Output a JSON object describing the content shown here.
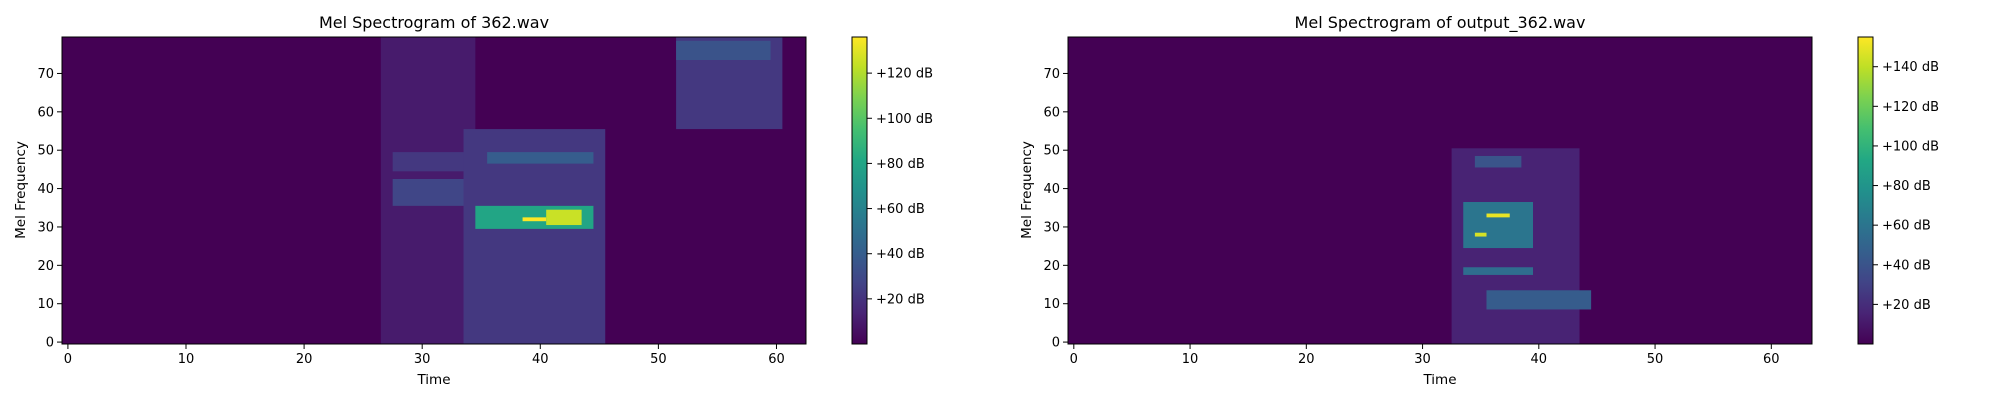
{
  "chart_data": [
    {
      "type": "heatmap",
      "title": "Mel Spectrogram of 362.wav",
      "xlabel": "Time",
      "ylabel": "Mel Frequency",
      "xlim": [
        -0.5,
        62.5
      ],
      "ylim": [
        -0.5,
        79.5
      ],
      "x_ticks": [
        0,
        10,
        20,
        30,
        40,
        50,
        60
      ],
      "y_ticks": [
        0,
        10,
        20,
        30,
        40,
        50,
        60,
        70
      ],
      "colormap": "viridis",
      "colorbar": {
        "label": "",
        "range_db": [
          0,
          136
        ],
        "ticks": [
          20,
          40,
          60,
          80,
          100,
          120
        ],
        "format": "+%d dB"
      },
      "grid": false,
      "regions": [
        {
          "t": [
            27,
            34
          ],
          "mel": [
            0,
            79
          ],
          "db": 10,
          "note": "faint broadband activity"
        },
        {
          "t": [
            28,
            34
          ],
          "mel": [
            36,
            42
          ],
          "db": 28
        },
        {
          "t": [
            28,
            33
          ],
          "mel": [
            45,
            49
          ],
          "db": 22
        },
        {
          "t": [
            34,
            45
          ],
          "mel": [
            0,
            55
          ],
          "db": 22,
          "note": "harmonic stripes"
        },
        {
          "t": [
            35,
            44
          ],
          "mel": [
            30,
            35
          ],
          "db": 80
        },
        {
          "t": [
            39,
            40
          ],
          "mel": [
            32,
            32
          ],
          "db": 136
        },
        {
          "t": [
            41,
            43
          ],
          "mel": [
            31,
            34
          ],
          "db": 125
        },
        {
          "t": [
            36,
            44
          ],
          "mel": [
            47,
            49
          ],
          "db": 40
        },
        {
          "t": [
            52,
            60
          ],
          "mel": [
            56,
            79
          ],
          "db": 22
        },
        {
          "t": [
            52,
            59
          ],
          "mel": [
            74,
            78
          ],
          "db": 35
        }
      ]
    },
    {
      "type": "heatmap",
      "title": "Mel Spectrogram of output_362.wav",
      "xlabel": "Time",
      "ylabel": "Mel Frequency",
      "xlim": [
        -0.5,
        63.5
      ],
      "ylim": [
        -0.5,
        79.5
      ],
      "x_ticks": [
        0,
        10,
        20,
        30,
        40,
        50,
        60
      ],
      "y_ticks": [
        0,
        10,
        20,
        30,
        40,
        50,
        60,
        70
      ],
      "colormap": "viridis",
      "colorbar": {
        "label": "",
        "range_db": [
          0,
          155
        ],
        "ticks": [
          20,
          40,
          60,
          80,
          100,
          120,
          140
        ],
        "format": "+%d dB"
      },
      "grid": false,
      "regions": [
        {
          "t": [
            33,
            43
          ],
          "mel": [
            0,
            50
          ],
          "db": 15,
          "note": "faint activity"
        },
        {
          "t": [
            34,
            39
          ],
          "mel": [
            25,
            36
          ],
          "db": 60
        },
        {
          "t": [
            36,
            37
          ],
          "mel": [
            33,
            33
          ],
          "db": 150
        },
        {
          "t": [
            35,
            35
          ],
          "mel": [
            28,
            28
          ],
          "db": 145
        },
        {
          "t": [
            34,
            39
          ],
          "mel": [
            18,
            19
          ],
          "db": 55
        },
        {
          "t": [
            36,
            44
          ],
          "mel": [
            9,
            13
          ],
          "db": 45
        },
        {
          "t": [
            35,
            38
          ],
          "mel": [
            46,
            48
          ],
          "db": 40
        }
      ]
    }
  ]
}
